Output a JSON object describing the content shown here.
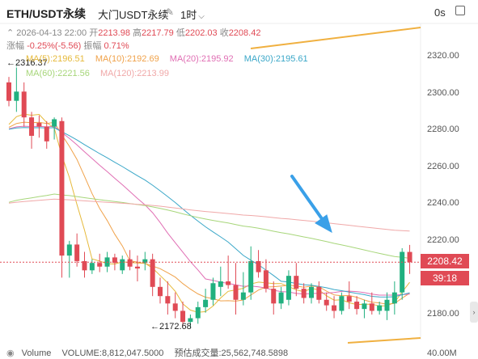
{
  "header": {
    "symbol": "ETH/USDT永续",
    "exchange": "大门USDT永续",
    "timeframe": "1时",
    "countdown": "0s"
  },
  "ohlc": {
    "datetime": "2026-04-13 22:00",
    "open_label": "开",
    "open": "2213.98",
    "high_label": "高",
    "high": "2217.79",
    "low_label": "低",
    "low": "2202.03",
    "close_label": "收",
    "close": "2208.42",
    "change_label": "涨幅",
    "change": "-0.25%(-5.56)",
    "amplitude_label": "振幅",
    "amplitude": "0.71%"
  },
  "ma": {
    "ma5": "MA(5):2196.51",
    "ma10": "MA(10):2192.69",
    "ma20": "MA(20):2195.92",
    "ma30": "MA(30):2195.61",
    "ma60": "MA(60):2221.56",
    "ma120": "MA(120):2213.99"
  },
  "colors": {
    "up": "#21b07f",
    "down": "#e04a55",
    "ma5": "#e6b93a",
    "ma10": "#f0a24a",
    "ma20": "#e06fb4",
    "ma30": "#3aa7c8",
    "ma60": "#a7d67a",
    "ma120": "#f0a8a8",
    "arrow": "#3aa0e8"
  },
  "chart_labels": {
    "high_marker": "2316.37",
    "low_marker": "2172.68"
  },
  "y_axis": [
    "2320.00",
    "2300.00",
    "2280.00",
    "2260.00",
    "2240.00",
    "2220.00",
    "2200.00",
    "2180.00"
  ],
  "price_tag": "2208.42",
  "time_tag": "39:18",
  "volume": {
    "label": "Volume",
    "volume_text": "VOLUME:8,812,047.5000",
    "estimate_text": "预估成交量:25,562,748.5898",
    "axis_label": "40.00M"
  },
  "chart_data": {
    "type": "candlestick",
    "ylim": [
      2170,
      2330
    ],
    "candles": [
      {
        "o": 2306,
        "h": 2309,
        "l": 2293,
        "c": 2296
      },
      {
        "o": 2296,
        "h": 2316.37,
        "l": 2290,
        "c": 2301
      },
      {
        "o": 2301,
        "h": 2306,
        "l": 2282,
        "c": 2287
      },
      {
        "o": 2287,
        "h": 2290,
        "l": 2270,
        "c": 2277
      },
      {
        "o": 2284,
        "h": 2288,
        "l": 2276,
        "c": 2282
      },
      {
        "o": 2282,
        "h": 2285,
        "l": 2270,
        "c": 2274
      },
      {
        "o": 2282,
        "h": 2287,
        "l": 2275,
        "c": 2286
      },
      {
        "o": 2285,
        "h": 2287,
        "l": 2200,
        "c": 2212
      },
      {
        "o": 2212,
        "h": 2220,
        "l": 2200,
        "c": 2218
      },
      {
        "o": 2218,
        "h": 2224,
        "l": 2206,
        "c": 2209
      },
      {
        "o": 2209,
        "h": 2214,
        "l": 2200,
        "c": 2204
      },
      {
        "o": 2204,
        "h": 2210,
        "l": 2202,
        "c": 2208
      },
      {
        "o": 2208,
        "h": 2213,
        "l": 2203,
        "c": 2206
      },
      {
        "o": 2206,
        "h": 2214,
        "l": 2203,
        "c": 2211
      },
      {
        "o": 2211,
        "h": 2213,
        "l": 2204,
        "c": 2208
      },
      {
        "o": 2204,
        "h": 2212,
        "l": 2202,
        "c": 2210
      },
      {
        "o": 2210,
        "h": 2215,
        "l": 2204,
        "c": 2206
      },
      {
        "o": 2206,
        "h": 2212,
        "l": 2198,
        "c": 2205
      },
      {
        "o": 2208,
        "h": 2214,
        "l": 2204,
        "c": 2210
      },
      {
        "o": 2210,
        "h": 2213,
        "l": 2190,
        "c": 2195
      },
      {
        "o": 2195,
        "h": 2200,
        "l": 2186,
        "c": 2190
      },
      {
        "o": 2190,
        "h": 2198,
        "l": 2180,
        "c": 2186
      },
      {
        "o": 2186,
        "h": 2192,
        "l": 2178,
        "c": 2182
      },
      {
        "o": 2182,
        "h": 2187,
        "l": 2174,
        "c": 2176
      },
      {
        "o": 2176,
        "h": 2180,
        "l": 2172.68,
        "c": 2178
      },
      {
        "o": 2178,
        "h": 2187,
        "l": 2175,
        "c": 2184
      },
      {
        "o": 2184,
        "h": 2194,
        "l": 2181,
        "c": 2188
      },
      {
        "o": 2188,
        "h": 2200,
        "l": 2185,
        "c": 2197
      },
      {
        "o": 2195,
        "h": 2206,
        "l": 2190,
        "c": 2198
      },
      {
        "o": 2198,
        "h": 2212,
        "l": 2194,
        "c": 2196
      },
      {
        "o": 2196,
        "h": 2208,
        "l": 2180,
        "c": 2188
      },
      {
        "o": 2188,
        "h": 2203,
        "l": 2185,
        "c": 2192
      },
      {
        "o": 2192,
        "h": 2217,
        "l": 2188,
        "c": 2209
      },
      {
        "o": 2209,
        "h": 2215,
        "l": 2200,
        "c": 2203
      },
      {
        "o": 2204,
        "h": 2210,
        "l": 2192,
        "c": 2194
      },
      {
        "o": 2194,
        "h": 2198,
        "l": 2180,
        "c": 2186
      },
      {
        "o": 2186,
        "h": 2195,
        "l": 2183,
        "c": 2192
      },
      {
        "o": 2188,
        "h": 2204,
        "l": 2185,
        "c": 2201
      },
      {
        "o": 2201,
        "h": 2208,
        "l": 2190,
        "c": 2194
      },
      {
        "o": 2194,
        "h": 2197,
        "l": 2186,
        "c": 2189
      },
      {
        "o": 2189,
        "h": 2197,
        "l": 2186,
        "c": 2195
      },
      {
        "o": 2195,
        "h": 2198,
        "l": 2186,
        "c": 2188
      },
      {
        "o": 2188,
        "h": 2192,
        "l": 2182,
        "c": 2185
      },
      {
        "o": 2185,
        "h": 2190,
        "l": 2178,
        "c": 2182
      },
      {
        "o": 2182,
        "h": 2192,
        "l": 2180,
        "c": 2190
      },
      {
        "o": 2190,
        "h": 2198,
        "l": 2183,
        "c": 2187
      },
      {
        "o": 2187,
        "h": 2190,
        "l": 2180,
        "c": 2183
      },
      {
        "o": 2183,
        "h": 2188,
        "l": 2178,
        "c": 2186
      },
      {
        "o": 2186,
        "h": 2192,
        "l": 2180,
        "c": 2182
      },
      {
        "o": 2182,
        "h": 2187,
        "l": 2180,
        "c": 2185
      },
      {
        "o": 2182,
        "h": 2192,
        "l": 2177,
        "c": 2188
      },
      {
        "o": 2186,
        "h": 2198,
        "l": 2180,
        "c": 2192
      },
      {
        "o": 2192,
        "h": 2216,
        "l": 2188,
        "c": 2214
      },
      {
        "o": 2213.98,
        "h": 2217.79,
        "l": 2202.03,
        "c": 2208.42
      }
    ]
  }
}
